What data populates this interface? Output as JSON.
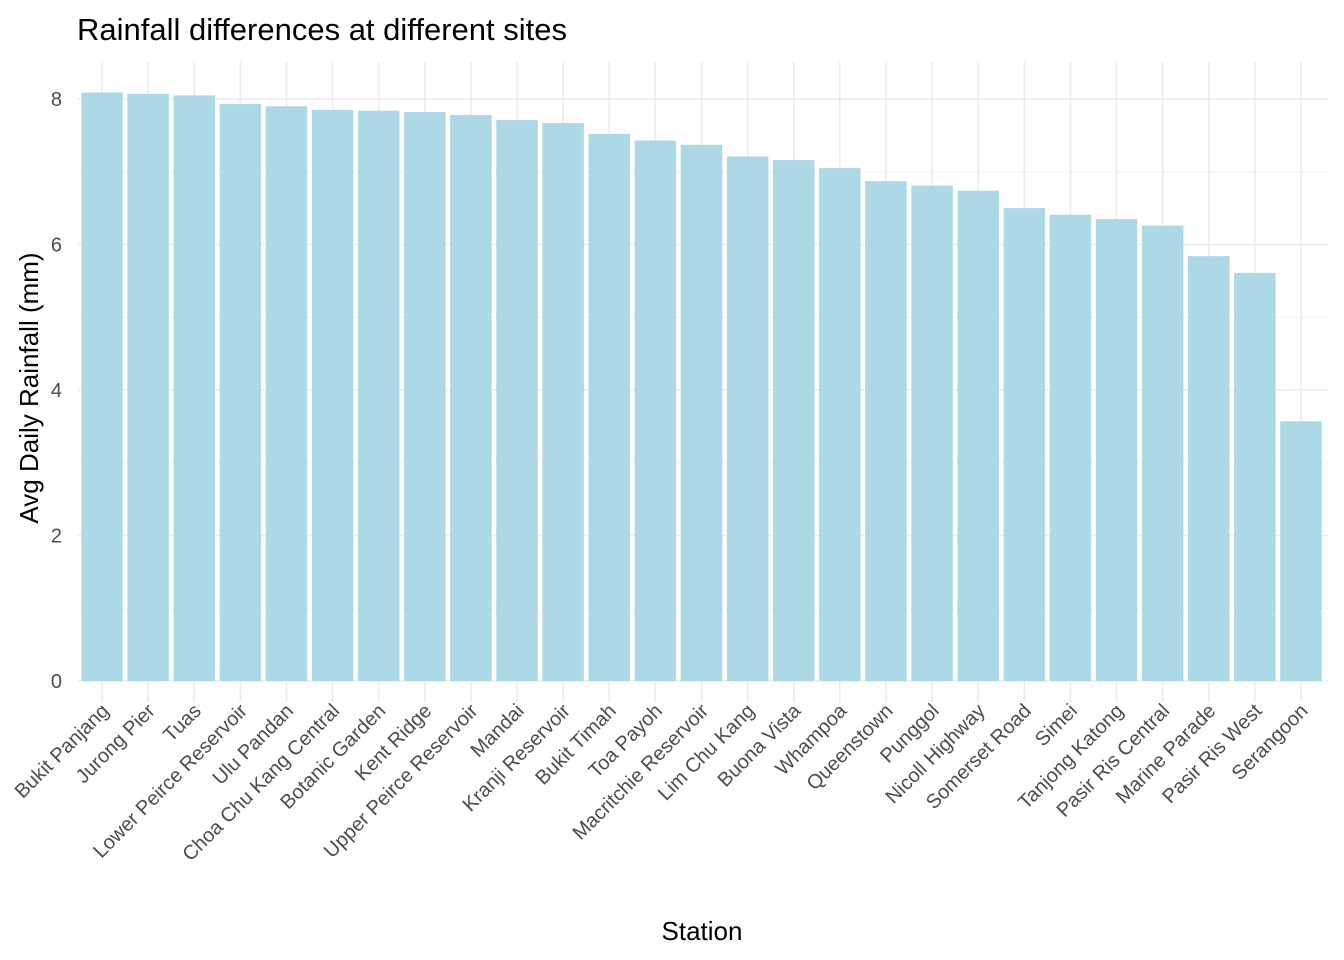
{
  "chart_data": {
    "type": "bar",
    "title": "Rainfall differences at different sites",
    "xlabel": "Station",
    "ylabel": "Avg Daily Rainfall (mm)",
    "ylim": [
      0,
      8.4
    ],
    "yticks": [
      0,
      2,
      4,
      6,
      8
    ],
    "grid": true,
    "bar_color": "#add8e6",
    "categories": [
      "Bukit Panjang",
      "Jurong Pier",
      "Tuas",
      "Lower Peirce Reservoir",
      "Ulu Pandan",
      "Choa Chu Kang Central",
      "Botanic Garden",
      "Kent Ridge",
      "Upper Peirce Reservoir",
      "Mandai",
      "Kranji Reservoir",
      "Bukit Timah",
      "Toa Payoh",
      "Macritchie Reservoir",
      "Lim Chu Kang",
      "Buona Vista",
      "Whampoa",
      "Queenstown",
      "Punggol",
      "Nicoll Highway",
      "Somerset Road",
      "Simei",
      "Tanjong Katong",
      "Pasir Ris Central",
      "Marine Parade",
      "Pasir Ris West",
      "Serangoon"
    ],
    "values": [
      8.09,
      8.07,
      8.05,
      7.93,
      7.9,
      7.85,
      7.84,
      7.82,
      7.78,
      7.71,
      7.67,
      7.52,
      7.43,
      7.37,
      7.21,
      7.16,
      7.05,
      6.87,
      6.81,
      6.74,
      6.5,
      6.41,
      6.35,
      6.26,
      5.84,
      5.61,
      3.57
    ]
  }
}
